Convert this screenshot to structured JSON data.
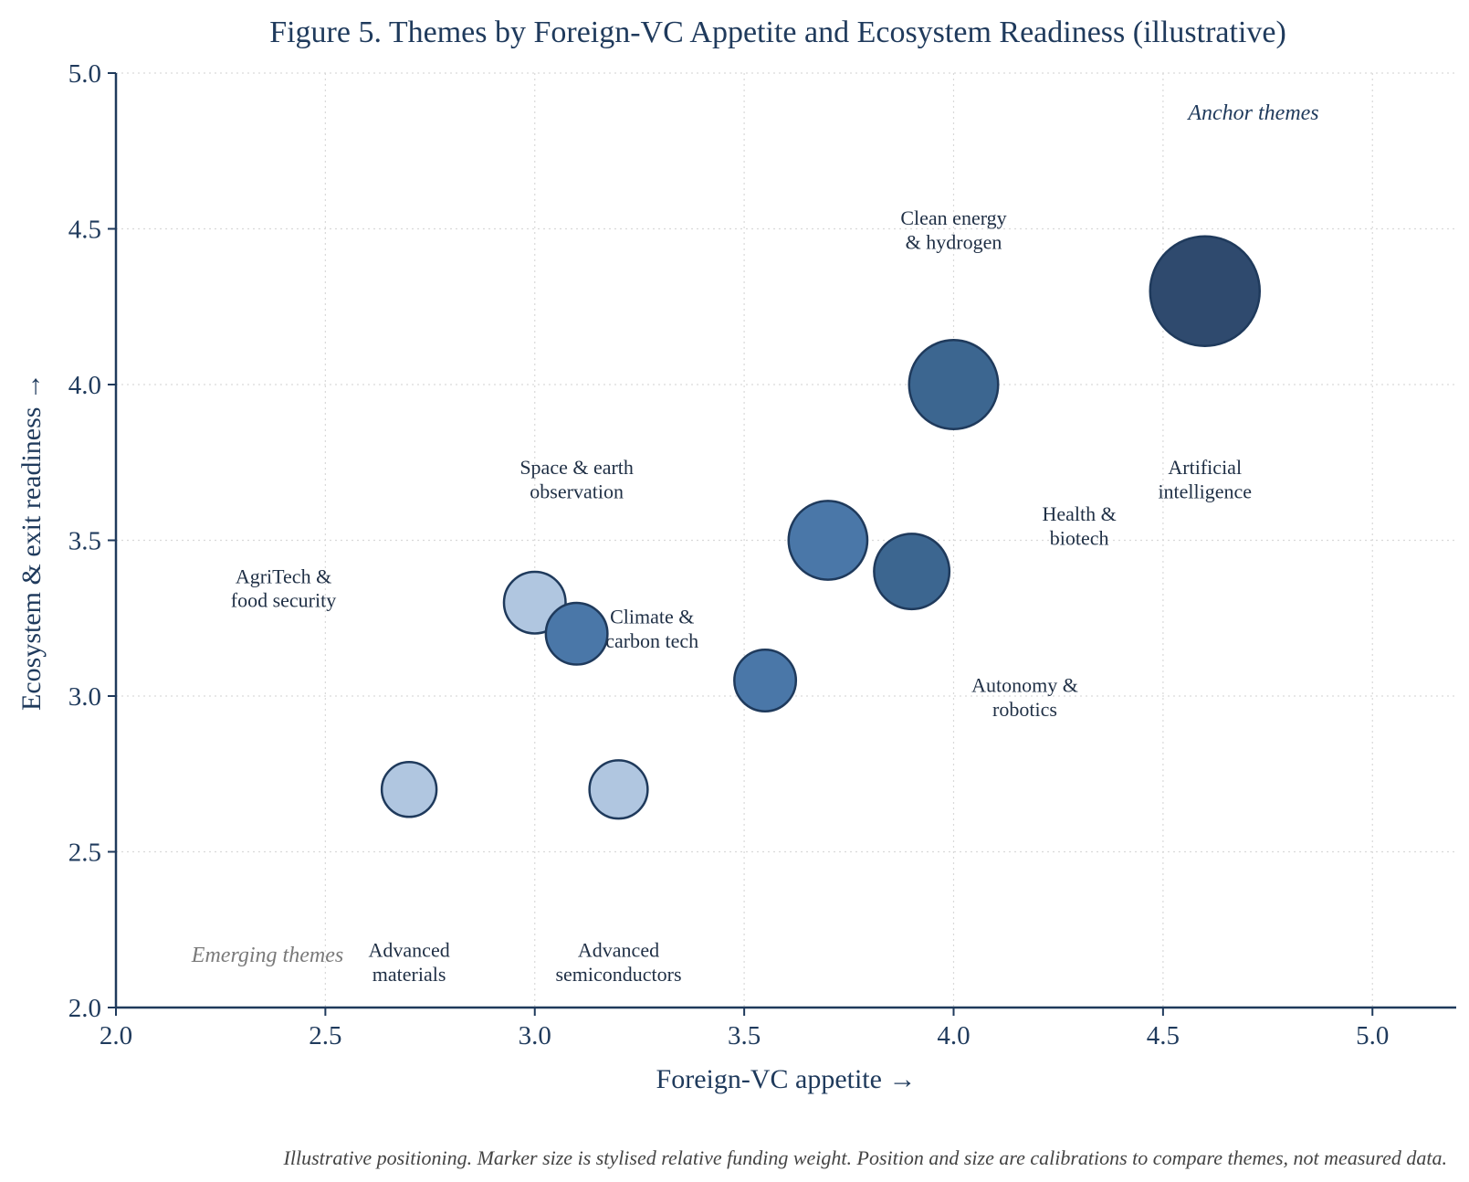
{
  "chart_data": {
    "type": "scatter",
    "title": "Figure 5. Themes by Foreign-VC Appetite and Ecosystem Readiness (illustrative)",
    "xlabel": "Foreign-VC appetite →",
    "ylabel": "Ecosystem & exit readiness →",
    "xlim": [
      2.0,
      5.2
    ],
    "ylim": [
      2.0,
      5.0
    ],
    "x_ticks": [
      "2.0",
      "2.5",
      "3.0",
      "3.5",
      "4.0",
      "4.5",
      "5.0"
    ],
    "y_ticks": [
      "2.0",
      "2.5",
      "3.0",
      "3.5",
      "4.0",
      "4.5",
      "5.0"
    ],
    "grid": true,
    "points": [
      {
        "label": "Artificial\nintelligence",
        "x": 4.6,
        "y": 4.3,
        "weight": 1.0,
        "color": "#2f4a6e"
      },
      {
        "label": "Clean energy\n& hydrogen",
        "x": 4.0,
        "y": 4.0,
        "weight": 0.7,
        "color": "#3c6690"
      },
      {
        "label": "Health &\nbiotech",
        "x": 3.9,
        "y": 3.4,
        "weight": 0.5,
        "color": "#3c6690"
      },
      {
        "label": "Autonomy &\nrobotics",
        "x": 3.7,
        "y": 3.5,
        "weight": 0.55,
        "color": "#4a77a8"
      },
      {
        "label": "Space & earth\nobservation",
        "x": 3.0,
        "y": 3.3,
        "weight": 0.3,
        "color": "#b0c6e0"
      },
      {
        "label": "Climate &\ncarbon tech",
        "x": 3.1,
        "y": 3.2,
        "weight": 0.3,
        "color": "#4a77a8"
      },
      {
        "label": "AgriTech &\nfood security",
        "x": 3.55,
        "y": 3.05,
        "weight": 0.3,
        "color": "#4a77a8"
      },
      {
        "label": "Advanced\nsemiconductors",
        "x": 3.2,
        "y": 2.7,
        "weight": 0.25,
        "color": "#b0c6e0"
      },
      {
        "label": "Advanced\nmaterials",
        "x": 2.7,
        "y": 2.7,
        "weight": 0.2,
        "color": "#b0c6e0"
      }
    ],
    "annotations": [
      "Anchor themes",
      "Emerging themes"
    ]
  },
  "footnote": "Illustrative positioning. Marker size is stylised relative funding weight. Position and size are calibrations to compare themes, not measured data."
}
